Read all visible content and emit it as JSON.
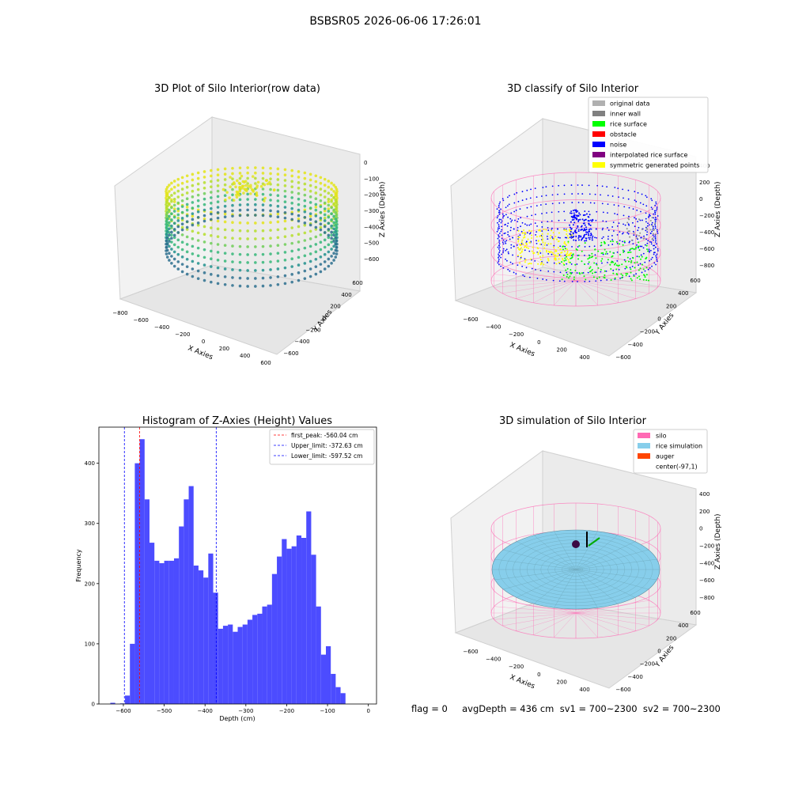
{
  "figure": {
    "suptitle": "BSBSR05 2026-06-06 17:26:01",
    "footer": "flag = 0     avgDepth = 436 cm  sv1 = 700~2300  sv2 = 700~2300"
  },
  "colors": {
    "hist_bar": "#4c4cff",
    "first_peak": "#ff0000",
    "limit": "#0000ff",
    "silo": "#ff69b4",
    "rice_sim": "#87ceeb",
    "auger": "#ff4500"
  },
  "plot1": {
    "title": "3D Plot of Silo Interior(row data)",
    "xlabel": "X Axies",
    "ylabel": "Y Axies",
    "zlabel": "Z Axies (Depth)",
    "xticks": [
      "−800",
      "−600",
      "−400",
      "−200",
      "0",
      "200",
      "400",
      "600"
    ],
    "yticks": [
      "−600",
      "−400",
      "−200",
      "0",
      "200",
      "400",
      "600"
    ],
    "zticks": [
      "0",
      "−100",
      "−200",
      "−300",
      "−400",
      "−500",
      "−600"
    ]
  },
  "plot2": {
    "title": "3D classify of Silo Interior",
    "xlabel": "X Axies",
    "ylabel": "Y Axies",
    "zlabel": "Z Axies (Depth)",
    "xticks": [
      "−600",
      "−400",
      "−200",
      "0",
      "200",
      "400"
    ],
    "yticks": [
      "−600",
      "−400",
      "−200",
      "0",
      "200",
      "400",
      "600"
    ],
    "zticks": [
      "400",
      "200",
      "0",
      "−200",
      "−400",
      "−600",
      "−800"
    ],
    "legend": [
      {
        "label": "original data",
        "color": "#b0b0b0"
      },
      {
        "label": "inner wall",
        "color": "#808080"
      },
      {
        "label": "rice surface",
        "color": "#00ff00"
      },
      {
        "label": "obstacle",
        "color": "#ff0000"
      },
      {
        "label": "noise",
        "color": "#0000ff"
      },
      {
        "label": "interpolated rice surface",
        "color": "#800080"
      },
      {
        "label": "symmetric generated points",
        "color": "#ffff00"
      }
    ]
  },
  "plot4": {
    "title": "3D simulation of Silo Interior",
    "xlabel": "X Axies",
    "ylabel": "Y Axies",
    "zlabel": "Z Axies (Depth)",
    "xticks": [
      "−600",
      "−400",
      "−200",
      "0",
      "200",
      "400"
    ],
    "yticks": [
      "−600",
      "−400",
      "−200",
      "0",
      "200",
      "400",
      "600"
    ],
    "zticks": [
      "400",
      "200",
      "0",
      "−200",
      "−400",
      "−600",
      "−800"
    ],
    "legend": [
      {
        "label": "silo",
        "color": "#ff69b4"
      },
      {
        "label": "rice simulation",
        "color": "#87ceeb"
      },
      {
        "label": "auger",
        "color": "#ff4500"
      },
      {
        "label": "center(-97,1)",
        "color": "none"
      }
    ]
  },
  "chart_data": {
    "type": "bar",
    "title": "Histogram of Z-Axies (Height) Values",
    "xlabel": "Depth (cm)",
    "ylabel": "Frequency",
    "xlim": [
      -660,
      20
    ],
    "ylim": [
      0,
      460
    ],
    "xticks": [
      -600,
      -500,
      -400,
      -300,
      -200,
      -100,
      0
    ],
    "xtick_labels": [
      "−600",
      "−500",
      "−400",
      "−300",
      "−200",
      "−100",
      "0"
    ],
    "yticks": [
      0,
      100,
      200,
      300,
      400
    ],
    "yticks_labels": [
      "0",
      "100",
      "200",
      "300",
      "400"
    ],
    "bin_width": 12,
    "bin_start": -632,
    "values": [
      2,
      0,
      1,
      14,
      100,
      400,
      440,
      340,
      268,
      238,
      234,
      238,
      238,
      242,
      295,
      340,
      362,
      230,
      222,
      210,
      250,
      185,
      125,
      130,
      132,
      120,
      128,
      132,
      140,
      148,
      150,
      162,
      165,
      216,
      245,
      274,
      258,
      262,
      280,
      276,
      320,
      248,
      162,
      82,
      96,
      50,
      28,
      18
    ],
    "vlines": [
      {
        "value": -560.04,
        "name": "first_peak: -560.04 cm",
        "color": "#ff0000"
      },
      {
        "value": -372.63,
        "name": "Upper_limit: -372.63 cm",
        "color": "#0000ff"
      },
      {
        "value": -597.52,
        "name": "Lower_limit: -597.52 cm",
        "color": "#0000ff"
      }
    ],
    "legend_position": "top-right"
  }
}
